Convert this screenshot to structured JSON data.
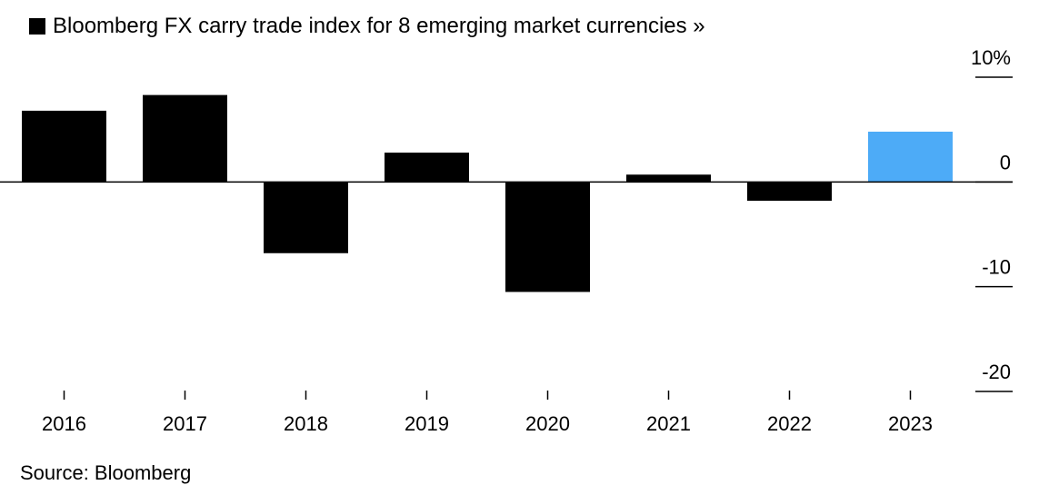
{
  "chart_data": {
    "type": "bar",
    "title": "Bloomberg FX carry trade index for 8 emerging market currencies »",
    "categories": [
      "2016",
      "2017",
      "2018",
      "2019",
      "2020",
      "2021",
      "2022",
      "2023"
    ],
    "series": [
      {
        "name": "Bloomberg FX carry trade index for 8 emerging market currencies",
        "values": [
          6.8,
          8.3,
          -6.8,
          2.8,
          -10.5,
          0.7,
          -1.8,
          4.8
        ]
      }
    ],
    "colors": {
      "default_bar": "#000000",
      "highlight_bar": "#4dabf7",
      "axis": "#000000"
    },
    "highlight_category": "2023",
    "ylim": [
      -20,
      10
    ],
    "yticks": [
      10,
      0,
      -10,
      -20
    ],
    "ytick_labels": [
      "10%",
      "0",
      "-10",
      "-20"
    ],
    "y_axis_position": "right",
    "grid": false,
    "legend_position": "top-left",
    "footer": "Source: Bloomberg"
  }
}
